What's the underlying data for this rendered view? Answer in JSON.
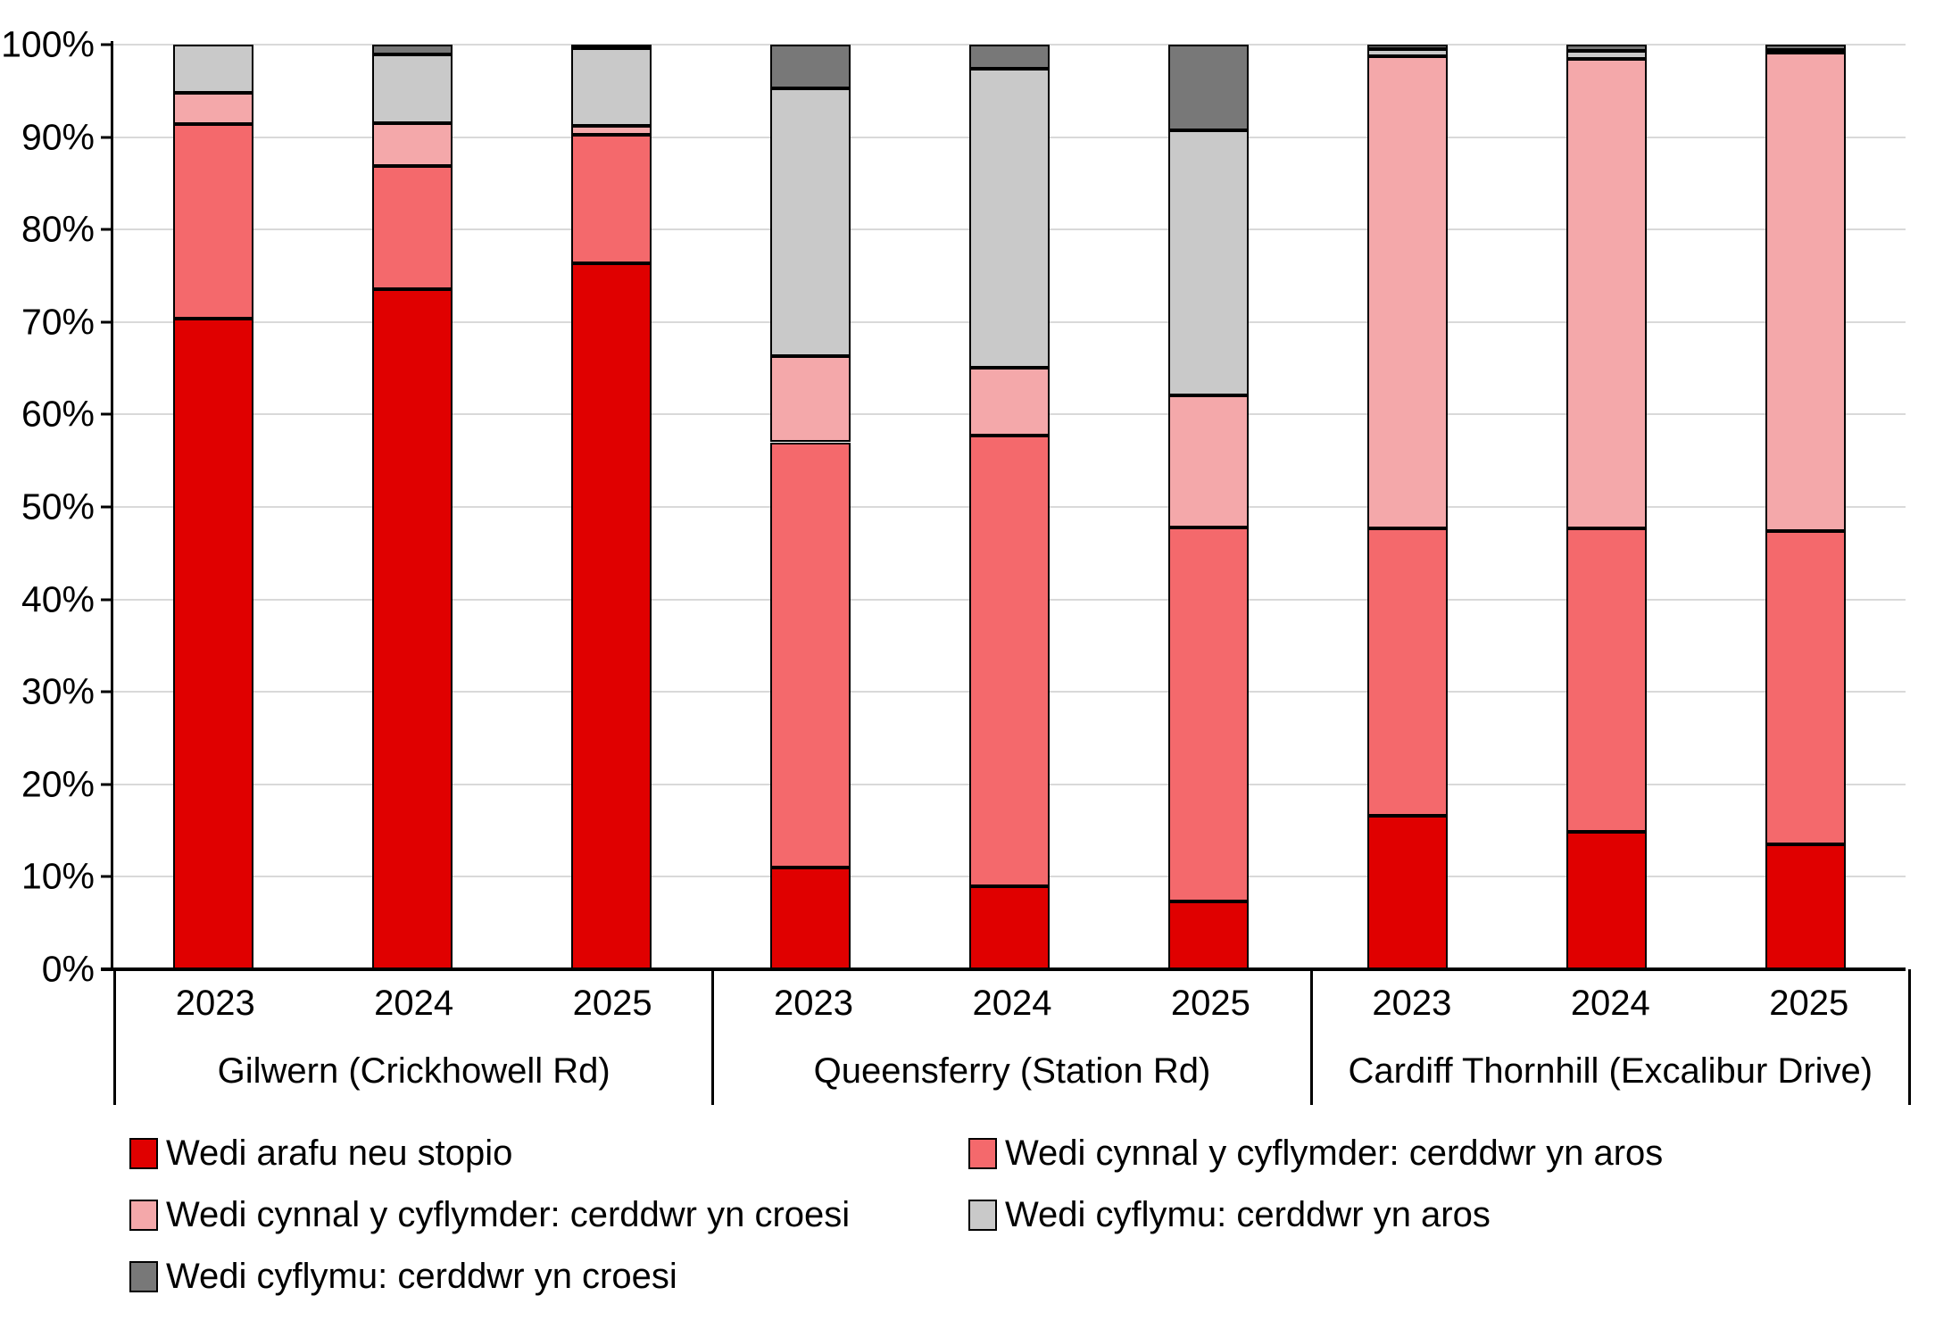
{
  "chart_data": {
    "type": "bar",
    "stacked": true,
    "units": "percent",
    "title": "",
    "legend_position": "bottom",
    "groups": [
      "Gilwern (Crickhowell Rd)",
      "Queensferry (Station Rd)",
      "Cardiff Thornhill (Excalibur Drive)"
    ],
    "years": [
      "2023",
      "2024",
      "2025"
    ],
    "categories": [
      "Gilwern (Crickhowell Rd) 2023",
      "Gilwern (Crickhowell Rd) 2024",
      "Gilwern (Crickhowell Rd) 2025",
      "Queensferry (Station Rd) 2023",
      "Queensferry (Station Rd) 2024",
      "Queensferry (Station Rd) 2025",
      "Cardiff Thornhill (Excalibur Drive) 2023",
      "Cardiff Thornhill (Excalibur Drive) 2024",
      "Cardiff Thornhill (Excalibur Drive) 2025"
    ],
    "series": [
      {
        "name": "Wedi arafu neu stopio",
        "color": "#E00000",
        "values": [
          70.4,
          73.6,
          76.4,
          11.0,
          9.0,
          7.3,
          16.6,
          14.9,
          13.5
        ]
      },
      {
        "name": "Wedi cynnal y cyflymder: cerddwr yn aros",
        "color": "#F4696C",
        "values": [
          21.0,
          13.3,
          13.9,
          46.0,
          48.7,
          40.5,
          31.1,
          32.8,
          33.9
        ]
      },
      {
        "name": "Wedi cynnal y cyflymder: cerddwr yn croesi",
        "color": "#F4A8AA",
        "values": [
          3.4,
          4.6,
          0.9,
          9.3,
          7.4,
          14.3,
          51.0,
          50.8,
          51.7
        ]
      },
      {
        "name": "Wedi cyflymu: cerddwr yn aros",
        "color": "#C9C9C9",
        "values": [
          5.2,
          7.4,
          8.4,
          29.0,
          32.3,
          28.6,
          0.8,
          0.8,
          0.3
        ]
      },
      {
        "name": "Wedi cyflymu: cerddwr yn croesi",
        "color": "#787878",
        "values": [
          0.0,
          1.1,
          0.4,
          4.7,
          2.6,
          9.3,
          0.5,
          0.7,
          0.6
        ]
      }
    ],
    "y_axis": {
      "min": 0,
      "max": 100,
      "tick_step": 10,
      "tick_labels": [
        "100%",
        "90%",
        "80%",
        "70%",
        "60%",
        "50%",
        "40%",
        "30%",
        "20%",
        "10%",
        "0%"
      ],
      "gridlines": true,
      "gridline_color": "#D9D9D9"
    },
    "colors": {
      "axis": "#000000",
      "text": "#000000",
      "background": "#FFFFFF",
      "bar_border": "#000000"
    }
  }
}
